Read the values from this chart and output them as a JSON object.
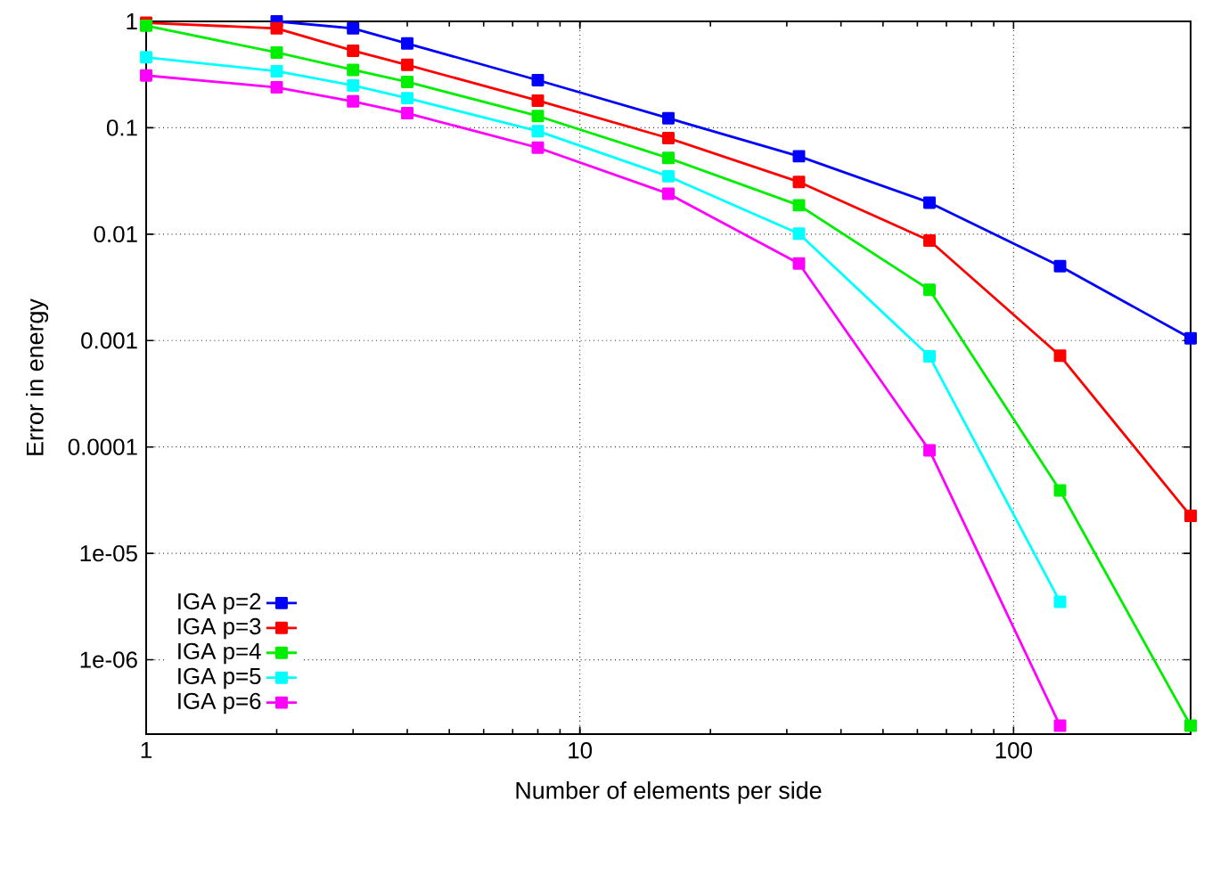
{
  "chart_data": {
    "type": "line",
    "xlabel": "Number of elements per side",
    "ylabel": "Error in energy",
    "x": [
      1,
      2,
      3,
      4,
      8,
      16,
      32,
      64,
      128,
      256
    ],
    "series": [
      {
        "name": "IGA p=2",
        "color": "#0000ff",
        "values": [
          null,
          1.0,
          0.86,
          0.62,
          0.28,
          0.123,
          0.054,
          0.0198,
          0.005,
          0.00105
        ]
      },
      {
        "name": "IGA p=3",
        "color": "#ff0000",
        "values": [
          0.97,
          0.86,
          0.53,
          0.39,
          0.18,
          0.08,
          0.031,
          0.0087,
          0.00072,
          2.25e-05
        ]
      },
      {
        "name": "IGA p=4",
        "color": "#00ee00",
        "values": [
          0.91,
          0.51,
          0.35,
          0.27,
          0.129,
          0.052,
          0.0187,
          0.003,
          3.9e-05,
          2.4e-07
        ]
      },
      {
        "name": "IGA p=5",
        "color": "#00ffff",
        "values": [
          0.46,
          0.34,
          0.25,
          0.19,
          0.093,
          0.035,
          0.0101,
          0.00071,
          3.5e-06,
          null
        ]
      },
      {
        "name": "IGA p=6",
        "color": "#ff00ff",
        "values": [
          0.31,
          0.24,
          0.177,
          0.137,
          0.065,
          0.024,
          0.0053,
          9.3e-05,
          2.4e-07,
          null
        ]
      }
    ],
    "log": "xy",
    "xlim": [
      1,
      256
    ],
    "ylim": [
      2e-07,
      1
    ],
    "xticks": [
      1,
      10,
      100
    ],
    "yticks": [
      1,
      0.1,
      0.01,
      0.001,
      0.0001,
      {
        "value": 1e-05,
        "label": "1e-05"
      },
      {
        "value": 1e-06,
        "label": "1e-06"
      }
    ],
    "grid": true,
    "legend": "bottom left",
    "marker": "square",
    "line_style": "solid"
  }
}
